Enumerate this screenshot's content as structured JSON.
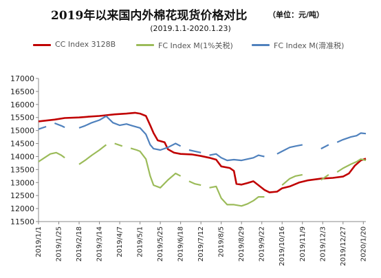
{
  "header": {
    "title": "2019年以来国内外棉花现货价格对比",
    "unit": "（单位：元/吨）",
    "subtitle": "(2019.1.1-2020.1.23)"
  },
  "colors": {
    "cc": "#c00000",
    "fc1": "#9bbb59",
    "fcs": "#4f81bd",
    "axis": "#888888"
  },
  "chart_data": {
    "type": "line",
    "title": "2019年以来国内外棉花现货价格对比",
    "subtitle": "(2019.1.1-2020.1.23)",
    "ylim": [
      11500,
      17000
    ],
    "yticks": [
      11500,
      12000,
      12500,
      13000,
      13500,
      14000,
      14500,
      15000,
      15500,
      16000,
      16500,
      17000
    ],
    "xlim": [
      "2019-01-01",
      "2020-01-23"
    ],
    "xticks": [
      "2019/1/1",
      "2019/1/25",
      "2019/2/18",
      "2019/3/14",
      "2019/4/7",
      "2019/5/1",
      "2019/5/25",
      "2019/6/18",
      "2019/7/12",
      "2019/8/5",
      "2019/8/29",
      "2019/9/22",
      "2019/10/16",
      "2019/11/9",
      "2019/12/3",
      "2019/12/27",
      "2020/1/20"
    ],
    "legend_position": "top",
    "grid": false,
    "series": [
      {
        "name": "CC Index 3128B",
        "color": "#c00000",
        "points": [
          [
            "2019-01-01",
            15350
          ],
          [
            "2019-01-20",
            15420
          ],
          [
            "2019-02-01",
            15480
          ],
          [
            "2019-02-18",
            15500
          ],
          [
            "2019-03-01",
            15530
          ],
          [
            "2019-03-14",
            15560
          ],
          [
            "2019-04-01",
            15620
          ],
          [
            "2019-04-15",
            15650
          ],
          [
            "2019-04-25",
            15680
          ],
          [
            "2019-05-01",
            15650
          ],
          [
            "2019-05-08",
            15560
          ],
          [
            "2019-05-13",
            15200
          ],
          [
            "2019-05-17",
            14900
          ],
          [
            "2019-05-22",
            14620
          ],
          [
            "2019-05-30",
            14550
          ],
          [
            "2019-06-03",
            14280
          ],
          [
            "2019-06-10",
            14150
          ],
          [
            "2019-06-18",
            14100
          ],
          [
            "2019-07-01",
            14080
          ],
          [
            "2019-07-12",
            14020
          ],
          [
            "2019-07-22",
            13950
          ],
          [
            "2019-07-30",
            13880
          ],
          [
            "2019-08-05",
            13620
          ],
          [
            "2019-08-15",
            13560
          ],
          [
            "2019-08-20",
            13450
          ],
          [
            "2019-08-23",
            12950
          ],
          [
            "2019-08-29",
            12920
          ],
          [
            "2019-09-05",
            12980
          ],
          [
            "2019-09-12",
            13050
          ],
          [
            "2019-09-18",
            12900
          ],
          [
            "2019-09-25",
            12720
          ],
          [
            "2019-10-01",
            12620
          ],
          [
            "2019-10-10",
            12650
          ],
          [
            "2019-10-16",
            12780
          ],
          [
            "2019-10-25",
            12850
          ],
          [
            "2019-11-05",
            13000
          ],
          [
            "2019-11-15",
            13080
          ],
          [
            "2019-12-01",
            13150
          ],
          [
            "2019-12-15",
            13180
          ],
          [
            "2019-12-27",
            13230
          ],
          [
            "2020-01-03",
            13350
          ],
          [
            "2020-01-10",
            13650
          ],
          [
            "2020-01-17",
            13850
          ],
          [
            "2020-01-23",
            13920
          ]
        ]
      },
      {
        "name": "FC Index M(1%关税)",
        "color": "#9bbb59",
        "points": [
          [
            "2019-01-01",
            13800
          ],
          [
            "2019-01-08",
            13950
          ],
          [
            "2019-01-15",
            14100
          ],
          [
            "2019-01-22",
            14150
          ],
          [
            "2019-01-28",
            14050
          ],
          [
            "2019-02-01",
            13950
          ],
          [
            "2019-02-18",
            13700
          ],
          [
            "2019-02-25",
            13850
          ],
          [
            "2019-03-05",
            14050
          ],
          [
            "2019-03-14",
            14250
          ],
          [
            "2019-03-22",
            14450
          ],
          [
            "2019-04-01",
            14500
          ],
          [
            "2019-04-10",
            14400
          ],
          [
            "2019-04-20",
            14320
          ],
          [
            "2019-04-27",
            14250
          ],
          [
            "2019-05-01",
            14200
          ],
          [
            "2019-05-08",
            13900
          ],
          [
            "2019-05-13",
            13250
          ],
          [
            "2019-05-17",
            12900
          ],
          [
            "2019-05-25",
            12800
          ],
          [
            "2019-06-03",
            13100
          ],
          [
            "2019-06-12",
            13350
          ],
          [
            "2019-06-18",
            13250
          ],
          [
            "2019-06-28",
            13050
          ],
          [
            "2019-07-05",
            12950
          ],
          [
            "2019-07-12",
            12900
          ],
          [
            "2019-07-22",
            12800
          ],
          [
            "2019-07-30",
            12850
          ],
          [
            "2019-08-05",
            12400
          ],
          [
            "2019-08-12",
            12150
          ],
          [
            "2019-08-20",
            12150
          ],
          [
            "2019-08-29",
            12100
          ],
          [
            "2019-09-05",
            12180
          ],
          [
            "2019-09-12",
            12300
          ],
          [
            "2019-09-18",
            12450
          ],
          [
            "2019-09-25",
            12450
          ],
          [
            "2019-10-16",
            12900
          ],
          [
            "2019-10-25",
            13150
          ],
          [
            "2019-11-01",
            13250
          ],
          [
            "2019-11-09",
            13300
          ],
          [
            "2019-11-20",
            13200
          ],
          [
            "2019-12-01",
            13100
          ],
          [
            "2019-12-10",
            13300
          ],
          [
            "2019-12-20",
            13400
          ],
          [
            "2019-12-27",
            13550
          ],
          [
            "2020-01-05",
            13700
          ],
          [
            "2020-01-12",
            13800
          ],
          [
            "2020-01-17",
            13900
          ],
          [
            "2020-01-23",
            13850
          ]
        ]
      },
      {
        "name": "FC Index M(滑准税)",
        "color": "#4f81bd",
        "points": [
          [
            "2019-01-01",
            15050
          ],
          [
            "2019-01-10",
            15150
          ],
          [
            "2019-01-20",
            15280
          ],
          [
            "2019-01-28",
            15180
          ],
          [
            "2019-02-01",
            15120
          ],
          [
            "2019-02-18",
            15100
          ],
          [
            "2019-02-25",
            15180
          ],
          [
            "2019-03-05",
            15300
          ],
          [
            "2019-03-14",
            15400
          ],
          [
            "2019-03-22",
            15550
          ],
          [
            "2019-03-30",
            15300
          ],
          [
            "2019-04-07",
            15200
          ],
          [
            "2019-04-15",
            15250
          ],
          [
            "2019-04-22",
            15180
          ],
          [
            "2019-05-01",
            15100
          ],
          [
            "2019-05-08",
            14850
          ],
          [
            "2019-05-13",
            14450
          ],
          [
            "2019-05-17",
            14300
          ],
          [
            "2019-05-25",
            14250
          ],
          [
            "2019-06-03",
            14350
          ],
          [
            "2019-06-12",
            14500
          ],
          [
            "2019-06-18",
            14400
          ],
          [
            "2019-06-28",
            14250
          ],
          [
            "2019-07-05",
            14200
          ],
          [
            "2019-07-12",
            14150
          ],
          [
            "2019-07-22",
            14050
          ],
          [
            "2019-07-30",
            14100
          ],
          [
            "2019-08-05",
            13950
          ],
          [
            "2019-08-12",
            13850
          ],
          [
            "2019-08-20",
            13880
          ],
          [
            "2019-08-29",
            13850
          ],
          [
            "2019-09-05",
            13900
          ],
          [
            "2019-09-12",
            13950
          ],
          [
            "2019-09-18",
            14050
          ],
          [
            "2019-09-25",
            14000
          ],
          [
            "2019-10-10",
            14100
          ],
          [
            "2019-10-16",
            14200
          ],
          [
            "2019-10-25",
            14350
          ],
          [
            "2019-11-01",
            14400
          ],
          [
            "2019-11-09",
            14450
          ],
          [
            "2019-11-20",
            14400
          ],
          [
            "2019-12-01",
            14300
          ],
          [
            "2019-12-10",
            14450
          ],
          [
            "2019-12-20",
            14550
          ],
          [
            "2019-12-27",
            14650
          ],
          [
            "2020-01-05",
            14750
          ],
          [
            "2020-01-12",
            14800
          ],
          [
            "2020-01-17",
            14900
          ],
          [
            "2020-01-23",
            14880
          ]
        ]
      }
    ]
  }
}
